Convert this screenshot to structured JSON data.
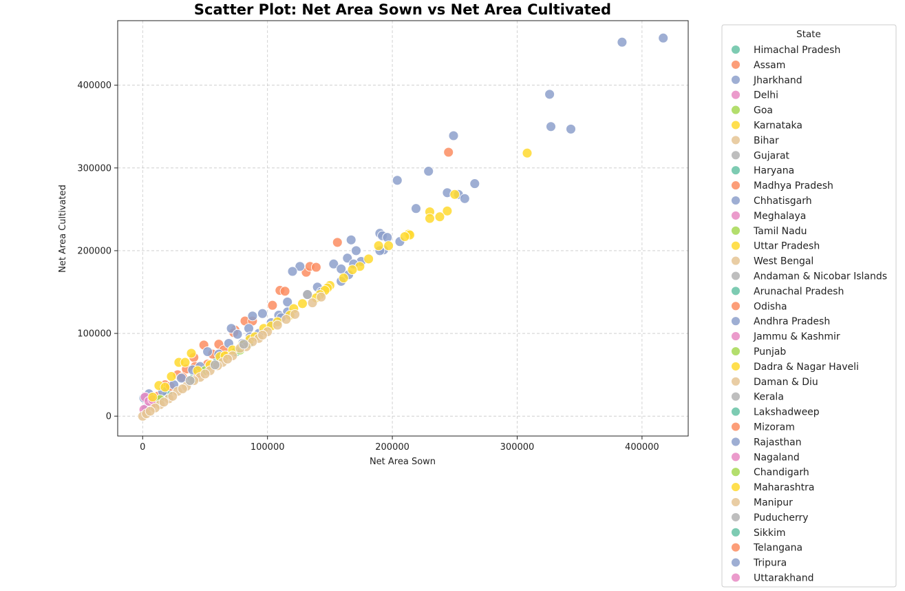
{
  "chart_data": {
    "type": "scatter",
    "title": "Scatter Plot: Net Area Sown vs Net Area Cultivated",
    "xlabel": "Net Area Sown",
    "ylabel": "Net Area Cultivated",
    "xlim": [
      -20000,
      437000
    ],
    "ylim": [
      -24000,
      478000
    ],
    "xticks": [
      0,
      100000,
      200000,
      300000,
      400000
    ],
    "yticks": [
      0,
      100000,
      200000,
      300000,
      400000
    ],
    "grid": true,
    "legend": {
      "title": "State",
      "placement": "outside-right"
    },
    "series": [
      {
        "name": "Himachal Pradesh",
        "color": "#66c2a5",
        "points": [
          [
            60000,
            70000
          ],
          [
            75000,
            78000
          ],
          [
            20000,
            28000
          ],
          [
            85000,
            88000
          ],
          [
            40000,
            45000
          ]
        ]
      },
      {
        "name": "Assam",
        "color": "#fc8d62",
        "points": [
          [
            245000,
            319000
          ],
          [
            156000,
            210000
          ],
          [
            131000,
            174000
          ],
          [
            134000,
            181000
          ],
          [
            139000,
            180000
          ],
          [
            110000,
            152000
          ],
          [
            114000,
            151000
          ],
          [
            104000,
            134000
          ],
          [
            82000,
            115000
          ],
          [
            88000,
            115000
          ],
          [
            74000,
            104000
          ],
          [
            73000,
            101000
          ],
          [
            49000,
            86000
          ],
          [
            61000,
            87000
          ],
          [
            41000,
            71000
          ],
          [
            56000,
            75000
          ],
          [
            35000,
            57000
          ],
          [
            42000,
            60000
          ],
          [
            28000,
            50000
          ],
          [
            52000,
            63000
          ],
          [
            18000,
            38000
          ],
          [
            22000,
            36000
          ],
          [
            12000,
            24000
          ],
          [
            32000,
            47000
          ],
          [
            44000,
            52000
          ],
          [
            65000,
            80000
          ],
          [
            8000,
            15000
          ]
        ]
      },
      {
        "name": "Jharkhand",
        "color": "#8da0cb",
        "points": [
          [
            417000,
            457000
          ],
          [
            384000,
            452000
          ],
          [
            326000,
            389000
          ],
          [
            327000,
            350000
          ],
          [
            343000,
            347000
          ],
          [
            249000,
            339000
          ],
          [
            229000,
            296000
          ],
          [
            204000,
            285000
          ],
          [
            266000,
            281000
          ],
          [
            244000,
            270000
          ],
          [
            253000,
            268000
          ],
          [
            258000,
            263000
          ],
          [
            219000,
            251000
          ],
          [
            190000,
            221000
          ],
          [
            192000,
            218000
          ],
          [
            196000,
            216000
          ],
          [
            206000,
            211000
          ],
          [
            167000,
            213000
          ],
          [
            193000,
            201000
          ],
          [
            171000,
            200000
          ],
          [
            190000,
            200000
          ],
          [
            164000,
            191000
          ],
          [
            175000,
            187000
          ],
          [
            169000,
            184000
          ],
          [
            153000,
            184000
          ],
          [
            126000,
            181000
          ],
          [
            159000,
            178000
          ],
          [
            120000,
            175000
          ],
          [
            165000,
            171000
          ],
          [
            159000,
            163000
          ],
          [
            140000,
            156000
          ],
          [
            132000,
            147000
          ],
          [
            143000,
            150000
          ],
          [
            116000,
            138000
          ],
          [
            96000,
            124000
          ],
          [
            116000,
            126000
          ],
          [
            109000,
            122000
          ],
          [
            111000,
            119000
          ],
          [
            88000,
            121000
          ],
          [
            71000,
            106000
          ],
          [
            76000,
            99000
          ],
          [
            93000,
            100000
          ],
          [
            85000,
            106000
          ],
          [
            103000,
            113000
          ],
          [
            69000,
            88000
          ],
          [
            86000,
            96000
          ],
          [
            80000,
            88000
          ],
          [
            52000,
            78000
          ],
          [
            61000,
            75000
          ],
          [
            40000,
            56000
          ],
          [
            46000,
            60000
          ],
          [
            31000,
            46000
          ],
          [
            25000,
            38000
          ],
          [
            16000,
            30000
          ],
          [
            5000,
            27000
          ],
          [
            1000,
            22000
          ],
          [
            3000,
            10000
          ]
        ]
      },
      {
        "name": "Delhi",
        "color": "#e78ac3",
        "points": [
          [
            2000,
            23000
          ],
          [
            5000,
            18000
          ],
          [
            8000,
            20000
          ],
          [
            1000,
            8000
          ]
        ]
      },
      {
        "name": "Goa",
        "color": "#a6d854",
        "points": [
          [
            78000,
            80000
          ],
          [
            14000,
            20000
          ],
          [
            50000,
            55000
          ]
        ]
      },
      {
        "name": "Karnataka",
        "color": "#ffd92f",
        "points": [
          [
            308000,
            318000
          ],
          [
            250000,
            268000
          ],
          [
            230000,
            247000
          ],
          [
            244000,
            248000
          ],
          [
            238000,
            241000
          ],
          [
            230000,
            239000
          ],
          [
            213000,
            220000
          ],
          [
            214000,
            219000
          ],
          [
            210000,
            217000
          ],
          [
            189000,
            206000
          ],
          [
            197000,
            206000
          ],
          [
            181000,
            190000
          ],
          [
            174000,
            181000
          ],
          [
            168000,
            177000
          ],
          [
            150000,
            158000
          ],
          [
            148000,
            155000
          ],
          [
            146000,
            152000
          ],
          [
            142000,
            147000
          ],
          [
            139000,
            143000
          ],
          [
            121000,
            130000
          ],
          [
            118000,
            122000
          ],
          [
            97000,
            106000
          ],
          [
            103000,
            109000
          ],
          [
            86000,
            93000
          ],
          [
            80000,
            86000
          ],
          [
            72000,
            80000
          ],
          [
            62000,
            72000
          ],
          [
            29000,
            65000
          ],
          [
            34000,
            65000
          ],
          [
            39000,
            76000
          ],
          [
            23000,
            48000
          ],
          [
            13000,
            37000
          ],
          [
            18000,
            35000
          ],
          [
            8000,
            23000
          ],
          [
            44000,
            55000
          ],
          [
            54000,
            62000
          ],
          [
            66000,
            73000
          ],
          [
            90000,
            96000
          ],
          [
            108000,
            114000
          ],
          [
            128000,
            136000
          ],
          [
            161000,
            167000
          ]
        ]
      },
      {
        "name": "Bihar",
        "color": "#e5c494",
        "points": [
          [
            143000,
            144000
          ],
          [
            136000,
            137000
          ],
          [
            122000,
            123000
          ],
          [
            108000,
            110000
          ],
          [
            100000,
            102000
          ],
          [
            93000,
            94000
          ],
          [
            88000,
            90000
          ],
          [
            83000,
            84000
          ],
          [
            78000,
            82000
          ],
          [
            72000,
            73000
          ],
          [
            64000,
            65000
          ],
          [
            60000,
            61000
          ],
          [
            54000,
            55000
          ],
          [
            46000,
            47000
          ],
          [
            41000,
            43000
          ],
          [
            35000,
            36000
          ],
          [
            28000,
            30000
          ],
          [
            21000,
            21000
          ],
          [
            14000,
            14000
          ],
          [
            10000,
            10000
          ],
          [
            0,
            0
          ],
          [
            3000,
            3000
          ],
          [
            6000,
            6000
          ],
          [
            17000,
            17000
          ],
          [
            24000,
            24000
          ],
          [
            32000,
            33000
          ],
          [
            50000,
            51000
          ],
          [
            68000,
            69000
          ],
          [
            96000,
            98000
          ],
          [
            115000,
            117000
          ]
        ]
      },
      {
        "name": "Gujarat",
        "color": "#b3b3b3",
        "points": [
          [
            132000,
            147000
          ],
          [
            81000,
            87000
          ],
          [
            58000,
            62000
          ],
          [
            38000,
            43000
          ]
        ]
      }
    ]
  }
}
